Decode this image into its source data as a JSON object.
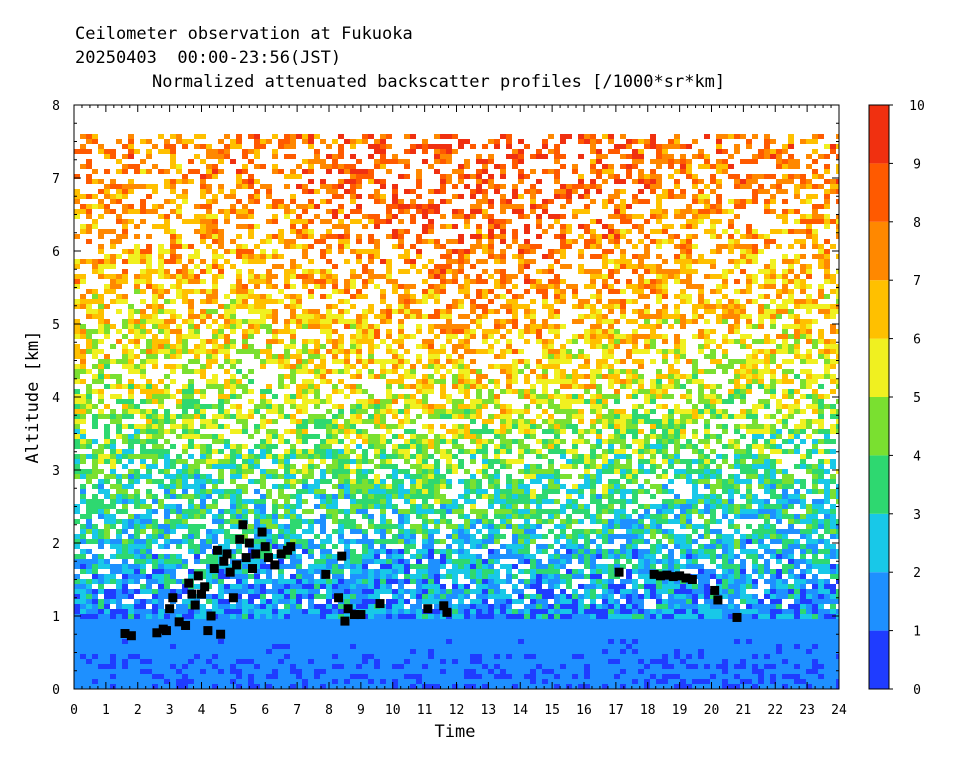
{
  "header": {
    "line1": "Ceilometer observation at Fukuoka",
    "line2": "20250403  00:00-23:56(JST)",
    "line3": "Normalized attenuated backscatter profiles [/1000*sr*km]"
  },
  "chart_data": {
    "type": "heatmap",
    "xlabel": "Time",
    "ylabel": "Altitude [km]",
    "xlim": [
      0,
      24
    ],
    "ylim": [
      0,
      8
    ],
    "x_ticks": [
      "0",
      "1",
      "2",
      "3",
      "4",
      "5",
      "6",
      "7",
      "8",
      "9",
      "10",
      "11",
      "12",
      "13",
      "14",
      "15",
      "16",
      "17",
      "18",
      "19",
      "20",
      "21",
      "22",
      "23",
      "24"
    ],
    "y_ticks": [
      "0",
      "1",
      "2",
      "3",
      "4",
      "5",
      "6",
      "7",
      "8"
    ],
    "colorbar": {
      "range": [
        0,
        10
      ],
      "ticks": [
        "0",
        "1",
        "2",
        "3",
        "4",
        "5",
        "6",
        "7",
        "8",
        "9",
        "10"
      ],
      "colors": [
        "#1f3cff",
        "#1e90ff",
        "#18c8e8",
        "#2ed870",
        "#7ae030",
        "#f0f020",
        "#ffc000",
        "#ff8800",
        "#ff5a00",
        "#f03010"
      ]
    },
    "data_top_km": 7.65,
    "profile_description_levels": [
      {
        "altitude_km": 0.3,
        "value": 1.2
      },
      {
        "altitude_km": 1.0,
        "value": 1.5
      },
      {
        "altitude_km": 2.0,
        "value": 2.5
      },
      {
        "altitude_km": 3.0,
        "value": 3.5
      },
      {
        "altitude_km": 4.0,
        "value": 5.0
      },
      {
        "altitude_km": 5.5,
        "value": 6.5
      },
      {
        "altitude_km": 7.0,
        "value": 7.5
      }
    ],
    "cloud_base_points": [
      {
        "t": 1.6,
        "h": 0.76
      },
      {
        "t": 1.8,
        "h": 0.73
      },
      {
        "t": 2.6,
        "h": 0.77
      },
      {
        "t": 2.8,
        "h": 0.82
      },
      {
        "t": 2.9,
        "h": 0.8
      },
      {
        "t": 3.0,
        "h": 1.1
      },
      {
        "t": 3.1,
        "h": 1.25
      },
      {
        "t": 3.3,
        "h": 0.92
      },
      {
        "t": 3.5,
        "h": 0.87
      },
      {
        "t": 3.6,
        "h": 1.45
      },
      {
        "t": 3.7,
        "h": 1.3
      },
      {
        "t": 3.8,
        "h": 1.15
      },
      {
        "t": 3.9,
        "h": 1.55
      },
      {
        "t": 4.0,
        "h": 1.3
      },
      {
        "t": 4.1,
        "h": 1.4
      },
      {
        "t": 4.2,
        "h": 0.8
      },
      {
        "t": 4.3,
        "h": 1.0
      },
      {
        "t": 4.4,
        "h": 1.65
      },
      {
        "t": 4.5,
        "h": 1.9
      },
      {
        "t": 4.6,
        "h": 0.75
      },
      {
        "t": 4.7,
        "h": 1.75
      },
      {
        "t": 4.8,
        "h": 1.85
      },
      {
        "t": 4.9,
        "h": 1.6
      },
      {
        "t": 5.0,
        "h": 1.25
      },
      {
        "t": 5.1,
        "h": 1.7
      },
      {
        "t": 5.2,
        "h": 2.05
      },
      {
        "t": 5.3,
        "h": 2.25
      },
      {
        "t": 5.4,
        "h": 1.8
      },
      {
        "t": 5.5,
        "h": 2.0
      },
      {
        "t": 5.6,
        "h": 1.65
      },
      {
        "t": 5.7,
        "h": 1.85
      },
      {
        "t": 5.9,
        "h": 2.15
      },
      {
        "t": 6.0,
        "h": 1.95
      },
      {
        "t": 6.1,
        "h": 1.8
      },
      {
        "t": 6.3,
        "h": 1.7
      },
      {
        "t": 6.5,
        "h": 1.85
      },
      {
        "t": 6.7,
        "h": 1.9
      },
      {
        "t": 6.8,
        "h": 1.95
      },
      {
        "t": 7.9,
        "h": 1.57
      },
      {
        "t": 8.3,
        "h": 1.25
      },
      {
        "t": 8.4,
        "h": 1.82
      },
      {
        "t": 8.5,
        "h": 0.93
      },
      {
        "t": 8.6,
        "h": 1.1
      },
      {
        "t": 8.8,
        "h": 1.02
      },
      {
        "t": 9.0,
        "h": 1.02
      },
      {
        "t": 9.6,
        "h": 1.17
      },
      {
        "t": 11.1,
        "h": 1.1
      },
      {
        "t": 11.6,
        "h": 1.14
      },
      {
        "t": 11.7,
        "h": 1.05
      },
      {
        "t": 17.1,
        "h": 1.6
      },
      {
        "t": 18.2,
        "h": 1.57
      },
      {
        "t": 18.4,
        "h": 1.55
      },
      {
        "t": 18.6,
        "h": 1.56
      },
      {
        "t": 18.8,
        "h": 1.54
      },
      {
        "t": 19.0,
        "h": 1.55
      },
      {
        "t": 19.2,
        "h": 1.52
      },
      {
        "t": 19.4,
        "h": 1.5
      },
      {
        "t": 20.1,
        "h": 1.35
      },
      {
        "t": 20.2,
        "h": 1.22
      },
      {
        "t": 20.8,
        "h": 0.98
      }
    ]
  }
}
